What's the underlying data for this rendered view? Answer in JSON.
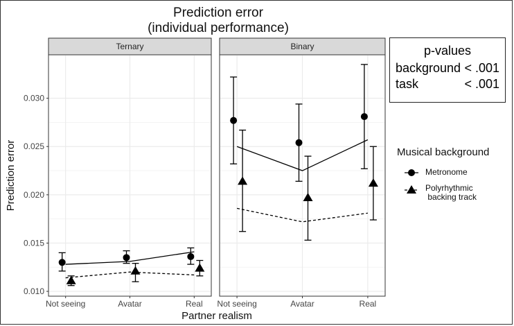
{
  "title_line1": "Prediction error",
  "title_line2": "(individual performance)",
  "pvalues": {
    "header": "p-values",
    "rows": [
      {
        "label": "background",
        "value": "< .001"
      },
      {
        "label": "task",
        "value": "< .001"
      }
    ]
  },
  "legend": {
    "title": "Musical background",
    "entries": [
      {
        "label": "Metronome",
        "marker": "circle",
        "line": "solid"
      },
      {
        "label": "Polyrhythmic\n backing track",
        "marker": "triangle",
        "line": "dashed"
      }
    ]
  },
  "chart_data": {
    "type": "line",
    "xlabel": "Partner realism",
    "ylabel": "Prediction error",
    "categories": [
      "Not seeing",
      "Avatar",
      "Real"
    ],
    "ylim": [
      0.0095,
      0.0345
    ],
    "yticks": [
      0.01,
      0.015,
      0.02,
      0.025,
      0.03
    ],
    "ytick_labels": [
      "0.010",
      "0.015",
      "0.020",
      "0.025",
      "0.030"
    ],
    "grid": true,
    "facets": [
      {
        "name": "Ternary",
        "series": [
          {
            "name": "Metronome",
            "marker": "circle",
            "points": [
              0.013,
              0.0135,
              0.0136
            ],
            "err_low": [
              0.0121,
              0.0129,
              0.0128
            ],
            "err_high": [
              0.014,
              0.0142,
              0.0145
            ],
            "fit": [
              0.0128,
              0.0131,
              0.0141
            ]
          },
          {
            "name": "Polyrhythmic backing track",
            "marker": "triangle",
            "points": [
              0.0111,
              0.0121,
              0.0124
            ],
            "err_low": [
              0.0106,
              0.011,
              0.0116
            ],
            "err_high": [
              0.0116,
              0.0129,
              0.0132
            ],
            "fit": [
              0.0114,
              0.012,
              0.0117
            ]
          }
        ]
      },
      {
        "name": "Binary",
        "series": [
          {
            "name": "Metronome",
            "marker": "circle",
            "points": [
              0.0277,
              0.0254,
              0.0281
            ],
            "err_low": [
              0.0232,
              0.0214,
              0.0227
            ],
            "err_high": [
              0.0322,
              0.0294,
              0.0335
            ],
            "fit": [
              0.025,
              0.0225,
              0.0257
            ]
          },
          {
            "name": "Polyrhythmic backing track",
            "marker": "triangle",
            "points": [
              0.0214,
              0.0197,
              0.0212
            ],
            "err_low": [
              0.0162,
              0.0153,
              0.0174
            ],
            "err_high": [
              0.0267,
              0.024,
              0.025
            ],
            "fit": [
              0.0186,
              0.0172,
              0.0181
            ]
          }
        ]
      }
    ]
  }
}
